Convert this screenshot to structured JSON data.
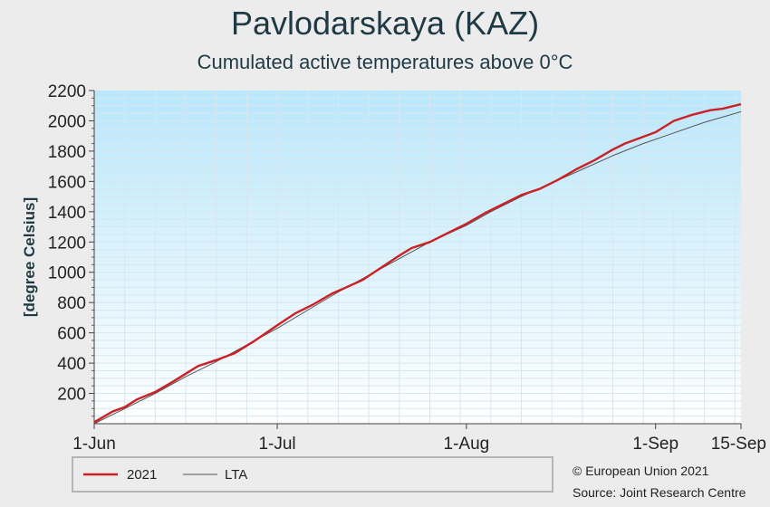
{
  "chart_data": {
    "type": "line",
    "title": "Pavlodarskaya (KAZ)",
    "subtitle": "Cumulated active temperatures above 0°C",
    "ylabel": "[degree Celsius]",
    "ylim": [
      0,
      2200
    ],
    "yticks": [
      200,
      400,
      600,
      800,
      1000,
      1200,
      1400,
      1600,
      1800,
      2000,
      2200
    ],
    "x_range_days": [
      0,
      106
    ],
    "xticks": [
      {
        "label": "1-Jun",
        "day": 0
      },
      {
        "label": "1-Jul",
        "day": 30
      },
      {
        "label": "1-Aug",
        "day": 61
      },
      {
        "label": "1-Sep",
        "day": 92
      },
      {
        "label": "15-Sep",
        "day": 106
      }
    ],
    "grid": true,
    "series": [
      {
        "name": "2021",
        "color": "#cc2027",
        "points": [
          [
            0,
            10
          ],
          [
            3,
            80
          ],
          [
            5,
            110
          ],
          [
            7,
            160
          ],
          [
            10,
            210
          ],
          [
            13,
            280
          ],
          [
            15,
            330
          ],
          [
            17,
            380
          ],
          [
            20,
            420
          ],
          [
            23,
            465
          ],
          [
            26,
            540
          ],
          [
            30,
            650
          ],
          [
            33,
            730
          ],
          [
            36,
            790
          ],
          [
            39,
            860
          ],
          [
            41,
            895
          ],
          [
            44,
            950
          ],
          [
            47,
            1030
          ],
          [
            50,
            1110
          ],
          [
            52,
            1160
          ],
          [
            55,
            1200
          ],
          [
            58,
            1260
          ],
          [
            61,
            1320
          ],
          [
            64,
            1390
          ],
          [
            67,
            1450
          ],
          [
            70,
            1510
          ],
          [
            73,
            1550
          ],
          [
            76,
            1610
          ],
          [
            79,
            1680
          ],
          [
            82,
            1740
          ],
          [
            85,
            1810
          ],
          [
            87,
            1850
          ],
          [
            89,
            1880
          ],
          [
            92,
            1925
          ],
          [
            95,
            2000
          ],
          [
            98,
            2040
          ],
          [
            101,
            2070
          ],
          [
            103,
            2080
          ],
          [
            106,
            2110
          ]
        ]
      },
      {
        "name": "LTA",
        "color": "#555555",
        "points": [
          [
            0,
            0
          ],
          [
            5,
            100
          ],
          [
            10,
            200
          ],
          [
            15,
            310
          ],
          [
            20,
            410
          ],
          [
            25,
            520
          ],
          [
            30,
            630
          ],
          [
            35,
            750
          ],
          [
            40,
            870
          ],
          [
            45,
            980
          ],
          [
            50,
            1090
          ],
          [
            55,
            1200
          ],
          [
            61,
            1310
          ],
          [
            65,
            1400
          ],
          [
            70,
            1500
          ],
          [
            75,
            1590
          ],
          [
            80,
            1680
          ],
          [
            85,
            1770
          ],
          [
            90,
            1850
          ],
          [
            95,
            1920
          ],
          [
            100,
            1990
          ],
          [
            106,
            2060
          ]
        ]
      }
    ],
    "legend": {
      "placement": "bottom-left"
    }
  },
  "credits": {
    "line1": "© European Union 2021",
    "line2": "Source: Joint Research Centre"
  }
}
